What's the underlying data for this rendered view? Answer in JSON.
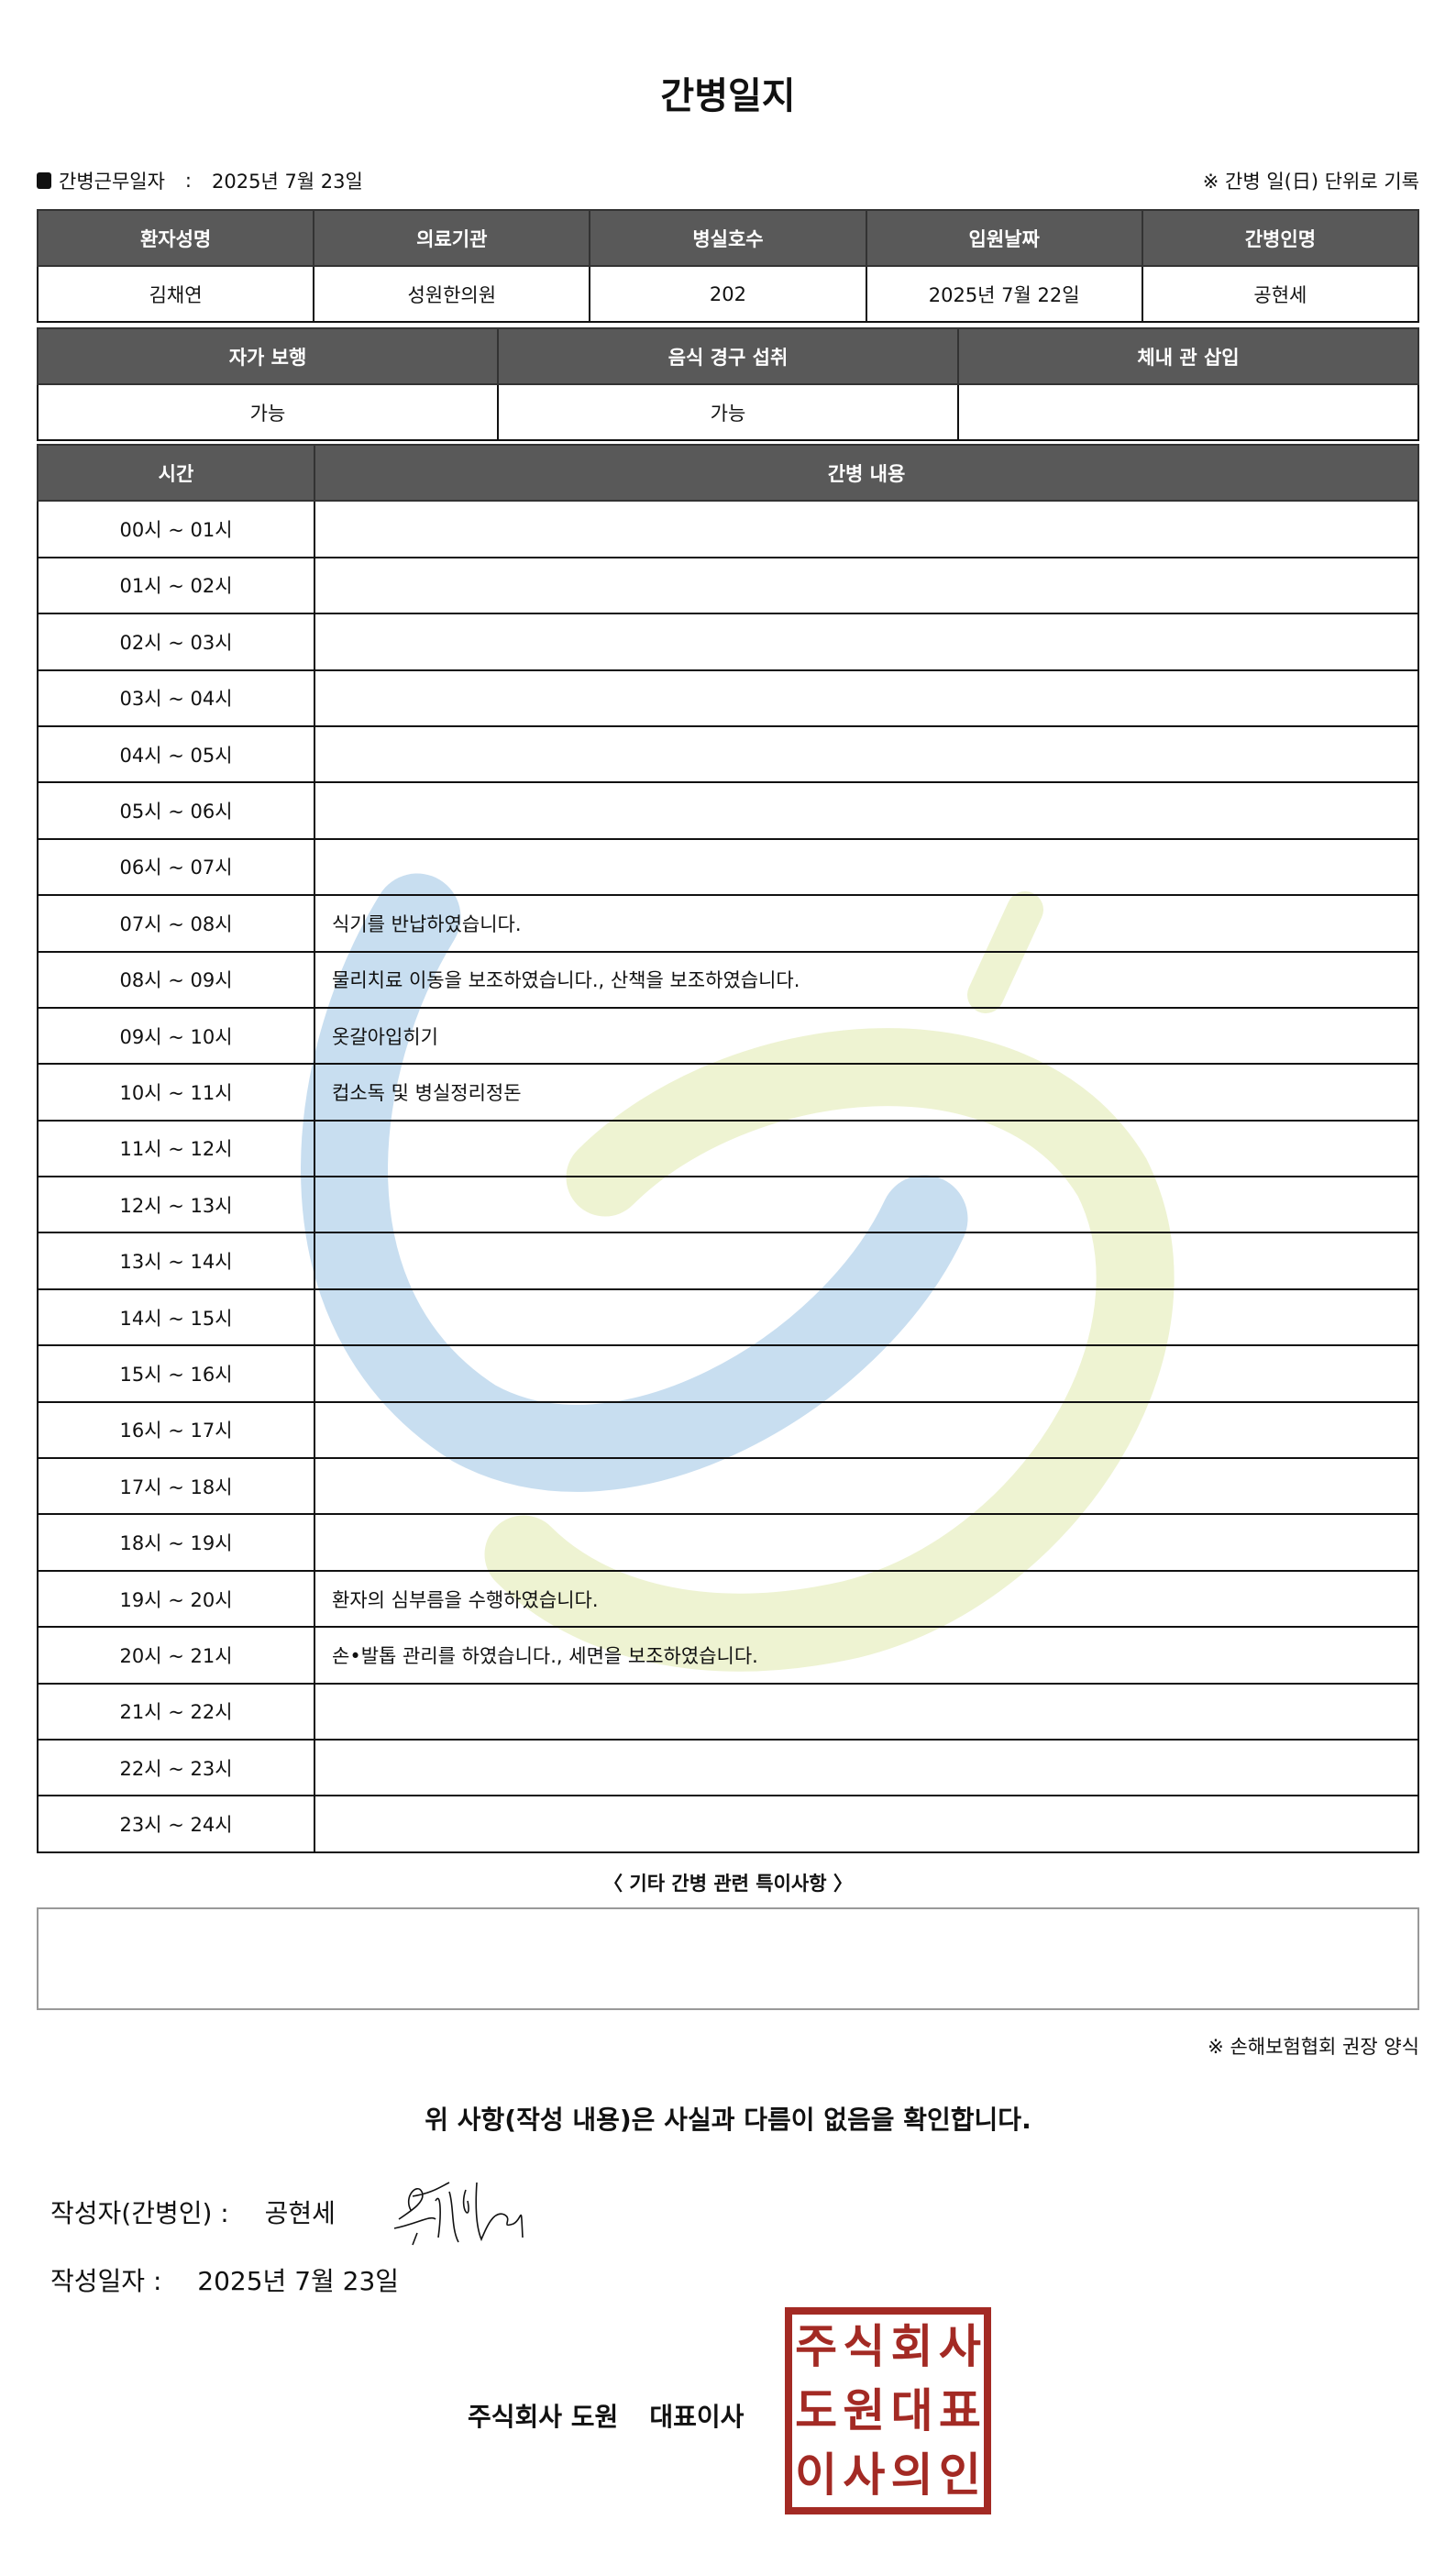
{
  "title": "간병일지",
  "info": {
    "label": "간병근무일자",
    "sep": ":",
    "date": "2025년 7월 23일"
  },
  "note_top": "※ 간병 일(日) 단위로 기록",
  "patient_table": {
    "headers": [
      "환자성명",
      "의료기관",
      "병실호수",
      "입원날짜",
      "간병인명"
    ],
    "values": [
      "김채연",
      "성원한의원",
      "202",
      "2025년 7월 22일",
      "공현세"
    ]
  },
  "status_table": {
    "headers": [
      "자가 보행",
      "음식 경구 섭취",
      "체내 관 삽입"
    ],
    "values": [
      "가능",
      "가능",
      ""
    ]
  },
  "log_table": {
    "headers": [
      "시간",
      "간병 내용"
    ],
    "rows": [
      {
        "time": "00시 ~ 01시",
        "content": ""
      },
      {
        "time": "01시 ~ 02시",
        "content": ""
      },
      {
        "time": "02시 ~ 03시",
        "content": ""
      },
      {
        "time": "03시 ~ 04시",
        "content": ""
      },
      {
        "time": "04시 ~ 05시",
        "content": ""
      },
      {
        "time": "05시 ~ 06시",
        "content": ""
      },
      {
        "time": "06시 ~ 07시",
        "content": ""
      },
      {
        "time": "07시 ~ 08시",
        "content": "식기를 반납하였습니다."
      },
      {
        "time": "08시 ~ 09시",
        "content": "물리치료 이동을 보조하였습니다., 산책을 보조하였습니다."
      },
      {
        "time": "09시 ~ 10시",
        "content": "옷갈아입히기"
      },
      {
        "time": "10시 ~ 11시",
        "content": "컵소독 및 병실정리정돈"
      },
      {
        "time": "11시 ~ 12시",
        "content": ""
      },
      {
        "time": "12시 ~ 13시",
        "content": ""
      },
      {
        "time": "13시 ~ 14시",
        "content": ""
      },
      {
        "time": "14시 ~ 15시",
        "content": ""
      },
      {
        "time": "15시 ~ 16시",
        "content": ""
      },
      {
        "time": "16시 ~ 17시",
        "content": ""
      },
      {
        "time": "17시 ~ 18시",
        "content": ""
      },
      {
        "time": "18시 ~ 19시",
        "content": ""
      },
      {
        "time": "19시 ~ 20시",
        "content": "환자의 심부름을 수행하였습니다."
      },
      {
        "time": "20시 ~ 21시",
        "content": "손•발톱 관리를 하였습니다., 세면을 보조하였습니다."
      },
      {
        "time": "21시 ~ 22시",
        "content": ""
      },
      {
        "time": "22시 ~ 23시",
        "content": ""
      },
      {
        "time": "23시 ~ 24시",
        "content": ""
      }
    ]
  },
  "remarks": {
    "title": "〈 기타 간병 관련 특이사항 〉",
    "content": ""
  },
  "note_bottom": "※ 손해보험협회 권장 양식",
  "confirm": "위 사항(작성 내용)은 사실과 다름이 없음을 확인합니다.",
  "writer": {
    "label": "작성자(간병인) :",
    "name": "공현세"
  },
  "written_date": {
    "label": "작성일자 :",
    "value": "2025년 7월 23일"
  },
  "company": {
    "name": "주식회사 도원",
    "title": "대표이사"
  },
  "stamp": {
    "chars": [
      "주",
      "식",
      "회",
      "사",
      "도",
      "원",
      "대",
      "표",
      "이",
      "사",
      "의",
      "인"
    ],
    "color": "#a32a24"
  },
  "colors": {
    "header_bg": "#595959",
    "watermark_blue": "#c8def0",
    "watermark_green": "#eef3d2"
  }
}
